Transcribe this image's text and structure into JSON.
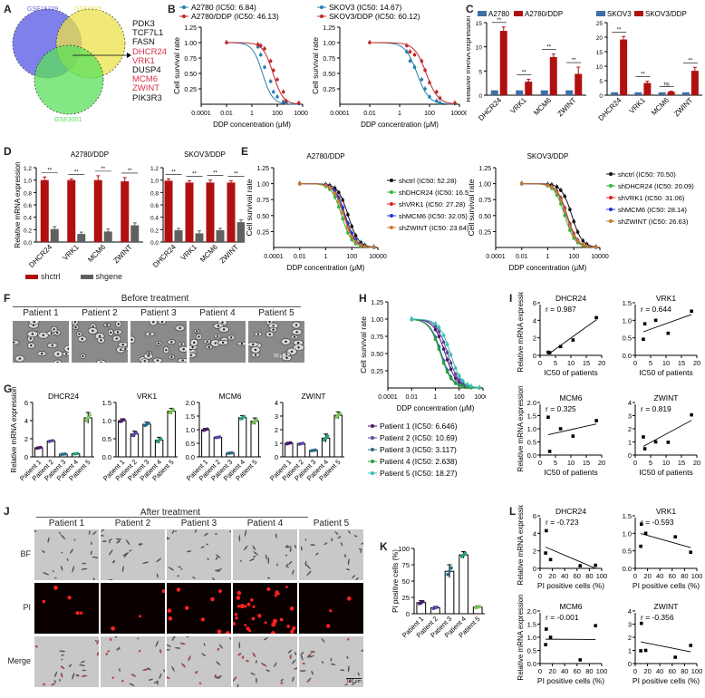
{
  "panels": {
    "A": {
      "label": "A",
      "sets": [
        {
          "name": "GSE15709",
          "color": "#6a6ae8"
        },
        {
          "name": "GSE1926",
          "color": "#e8e04a"
        },
        {
          "name": "GSE3001",
          "color": "#5ad95a"
        }
      ],
      "genes": [
        {
          "name": "PDK3",
          "highlight": false
        },
        {
          "name": "TCF7L1",
          "highlight": false
        },
        {
          "name": "FASN",
          "highlight": false
        },
        {
          "name": "DHCR24",
          "highlight": true
        },
        {
          "name": "VRK1",
          "highlight": true
        },
        {
          "name": "DUSP4",
          "highlight": false
        },
        {
          "name": "MCM6",
          "highlight": true
        },
        {
          "name": "ZWINT",
          "highlight": true
        },
        {
          "name": "PIK3R3",
          "highlight": false
        }
      ],
      "highlight_color": "#d6304a"
    },
    "B": {
      "label": "B"
    },
    "C": {
      "label": "C"
    },
    "D": {
      "label": "D",
      "legend": [
        {
          "name": "shctrl",
          "color": "#b01010"
        },
        {
          "name": "shgene",
          "color": "#606060"
        }
      ]
    },
    "E": {
      "label": "E"
    },
    "F": {
      "label": "F",
      "header": "Before treatment",
      "patients": [
        "Patient 1",
        "Patient 2",
        "Patient 3",
        "Patient 4",
        "Patient 5"
      ],
      "scale_bar": "50 μm"
    },
    "G": {
      "label": "G"
    },
    "H": {
      "label": "H"
    },
    "I": {
      "label": "I"
    },
    "J": {
      "label": "J",
      "header": "After treatment",
      "patients": [
        "Patient 1",
        "Patient 2",
        "Patient 3",
        "Patient 4",
        "Patient 5"
      ],
      "rows": [
        "BF",
        "PI",
        "Merge"
      ],
      "scale_bar": "100 μm"
    },
    "K": {
      "label": "K"
    },
    "L": {
      "label": "L"
    }
  },
  "chart_data": [
    {
      "id": "B-left",
      "type": "line",
      "title": "",
      "xlabel": "DDP concentration (μM)",
      "ylabel": "Cell survival rate",
      "xscale": "log",
      "xticks": [
        "0.0001",
        "0.01",
        "1",
        "100",
        "10000"
      ],
      "yticks": [
        "0.25",
        "0.50",
        "0.75",
        "1.00",
        "1.25"
      ],
      "ylim": [
        0,
        1.25
      ],
      "series": [
        {
          "name": "A2780 (IC50: 6.84)",
          "color": "#2a7fb0",
          "ic50": 6.84,
          "x": [
            0.01,
            3,
            5,
            10,
            30,
            50,
            100,
            300,
            500,
            5000
          ],
          "y": [
            1.0,
            0.93,
            0.8,
            0.6,
            0.37,
            0.2,
            0.12,
            0.04,
            0.02,
            0.01
          ]
        },
        {
          "name": "A2780/DDP (IC50: 46.13)",
          "color": "#c0282a",
          "ic50": 46.13,
          "x": [
            0.01,
            3,
            5,
            10,
            30,
            50,
            100,
            300,
            500,
            5000
          ],
          "y": [
            1.0,
            0.97,
            0.95,
            0.9,
            0.7,
            0.55,
            0.4,
            0.2,
            0.05,
            0.02
          ]
        }
      ]
    },
    {
      "id": "B-right",
      "type": "line",
      "title": "",
      "xlabel": "DDP concentration (μM)",
      "ylabel": "Cell survival rate",
      "xscale": "log",
      "xticks": [
        "0.0001",
        "0.01",
        "1",
        "100",
        "10000"
      ],
      "yticks": [
        "0.25",
        "0.50",
        "0.75",
        "1.00",
        "1.25"
      ],
      "ylim": [
        0,
        1.25
      ],
      "series": [
        {
          "name": "SKOV3 (IC50: 14.67)",
          "color": "#2a7fb0",
          "ic50": 14.67,
          "x": [
            0.01,
            3,
            5,
            10,
            30,
            50,
            100,
            300,
            500,
            5000
          ],
          "y": [
            1.0,
            0.85,
            0.7,
            0.6,
            0.4,
            0.25,
            0.12,
            0.05,
            0.02,
            0.01
          ]
        },
        {
          "name": "SKOV3/DDP (IC50: 60.12)",
          "color": "#c0282a",
          "ic50": 60.12,
          "x": [
            0.01,
            3,
            5,
            10,
            30,
            50,
            100,
            300,
            500,
            5000
          ],
          "y": [
            1.0,
            0.95,
            0.85,
            0.8,
            0.7,
            0.55,
            0.35,
            0.2,
            0.1,
            0.02
          ]
        }
      ]
    },
    {
      "id": "C-left",
      "type": "bar",
      "ylabel": "Relative mRNA expression",
      "categories": [
        "DHCR24",
        "VRK1",
        "MCM6",
        "ZWINT"
      ],
      "ylim": [
        0,
        15
      ],
      "yticks": [
        "0",
        "5",
        "10",
        "15"
      ],
      "series": [
        {
          "name": "A2780",
          "color": "#3d6fa6",
          "values": [
            1,
            1,
            1,
            1
          ]
        },
        {
          "name": "A2780/DDP",
          "color": "#b01010",
          "values": [
            13.3,
            2.8,
            7.9,
            4.4
          ],
          "errors": [
            0.8,
            0.5,
            0.6,
            1.4
          ]
        }
      ],
      "significance": [
        "**",
        "**",
        "**",
        "**"
      ]
    },
    {
      "id": "C-right",
      "type": "bar",
      "ylabel": "",
      "categories": [
        "DHCR24",
        "VRK1",
        "MCM6",
        "ZWINT"
      ],
      "ylim": [
        0,
        25
      ],
      "yticks": [
        "0",
        "5",
        "10",
        "15",
        "20",
        "25"
      ],
      "series": [
        {
          "name": "SKOV3",
          "color": "#3d6fa6",
          "values": [
            1,
            1,
            1,
            1
          ]
        },
        {
          "name": "SKOV3/DDP",
          "color": "#b01010",
          "values": [
            19.2,
            4.2,
            1.2,
            8.4
          ],
          "errors": [
            1.0,
            0.6,
            0.2,
            1.2
          ]
        }
      ],
      "significance": [
        "**",
        "**",
        "ns",
        "**"
      ]
    },
    {
      "id": "D-left",
      "type": "bar",
      "title": "A2780/DDP",
      "ylabel": "Relative mRNA expression",
      "categories": [
        "DHCR24",
        "VRK1",
        "MCM6",
        "ZWINT"
      ],
      "ylim": [
        0,
        1.2
      ],
      "yticks": [
        "0.0",
        "0.2",
        "0.4",
        "0.6",
        "0.8",
        "1.0",
        "1.2"
      ],
      "series": [
        {
          "name": "shctrl",
          "color": "#b01010",
          "values": [
            1.0,
            1.0,
            1.0,
            0.98
          ],
          "errors": [
            0.05,
            0.02,
            0.07,
            0.06
          ]
        },
        {
          "name": "shgene",
          "color": "#606060",
          "values": [
            0.21,
            0.13,
            0.17,
            0.27
          ],
          "errors": [
            0.04,
            0.03,
            0.04,
            0.04
          ]
        }
      ],
      "significance": [
        "**",
        "**",
        "**",
        "**"
      ]
    },
    {
      "id": "D-right",
      "type": "bar",
      "title": "SKOV3/DDP",
      "ylabel": "",
      "categories": [
        "DHCR24",
        "VRK1",
        "MCM6",
        "ZWINT"
      ],
      "ylim": [
        0,
        1.2
      ],
      "yticks": [
        "0.0",
        "0.2",
        "0.4",
        "0.6",
        "0.8",
        "1.0",
        "1.2"
      ],
      "series": [
        {
          "name": "shctrl",
          "color": "#b01010",
          "values": [
            0.99,
            0.96,
            0.96,
            0.96
          ],
          "errors": [
            0.03,
            0.03,
            0.04,
            0.03
          ]
        },
        {
          "name": "shgene",
          "color": "#606060",
          "values": [
            0.19,
            0.14,
            0.19,
            0.32
          ],
          "errors": [
            0.03,
            0.04,
            0.03,
            0.04
          ]
        }
      ],
      "significance": [
        "**",
        "**",
        "**",
        "**"
      ]
    },
    {
      "id": "E-left",
      "type": "line",
      "title": "A2780/DDP",
      "xlabel": "DDP concentration (μM)",
      "ylabel": "Cell survival rate",
      "xscale": "log",
      "xticks": [
        "0.0001",
        "0.01",
        "1",
        "100",
        "10000"
      ],
      "yticks": [
        "0.25",
        "0.50",
        "0.75",
        "1.00",
        "1.25"
      ],
      "ylim": [
        0,
        1.25
      ],
      "series": [
        {
          "name": "shctrl (IC50: 52.28)",
          "color": "#111111",
          "ic50": 52.28
        },
        {
          "name": "shDHCR24 (IC50: 16.54)",
          "color": "#2fb83a",
          "ic50": 16.54
        },
        {
          "name": "shVRK1 (IC50: 27.28)",
          "color": "#e02020",
          "ic50": 27.28
        },
        {
          "name": "shMCM6 (IC50: 32.05)",
          "color": "#2030d0",
          "ic50": 32.05
        },
        {
          "name": "shZWINT (IC50: 23.64)",
          "color": "#c8782a",
          "ic50": 23.64
        }
      ]
    },
    {
      "id": "E-right",
      "type": "line",
      "title": "SKOV3/DDP",
      "xlabel": "DDP concentration (μM)",
      "ylabel": "Cell survival rate",
      "xscale": "log",
      "xticks": [
        "0.0001",
        "0.01",
        "1",
        "100",
        "10000"
      ],
      "yticks": [
        "0.25",
        "0.50",
        "0.75",
        "1.00",
        "1.25"
      ],
      "ylim": [
        0,
        1.25
      ],
      "series": [
        {
          "name": "shctrl (IC50: 70.50)",
          "color": "#111111",
          "ic50": 70.5
        },
        {
          "name": "shDHCR24 (IC50: 20.09)",
          "color": "#2fb83a",
          "ic50": 20.09
        },
        {
          "name": "shVRK1 (IC50: 31.06)",
          "color": "#e02020",
          "ic50": 31.06
        },
        {
          "name": "shMCM6 (IC50: 28.14)",
          "color": "#2030d0",
          "ic50": 28.14
        },
        {
          "name": "shZWINT (IC50: 26.63)",
          "color": "#c8782a",
          "ic50": 26.63
        }
      ]
    },
    {
      "id": "G",
      "type": "bar",
      "ylabel": "Relative mRNA expression",
      "categories": [
        "Patient 1",
        "Patient 2",
        "Patient 3",
        "Patient 4",
        "Patient 5"
      ],
      "point_colors": [
        "#4a1a6a",
        "#5a4aa0",
        "#2a6a8a",
        "#2aa080",
        "#7ac850"
      ],
      "subplots": [
        {
          "title": "DHCR24",
          "ylim": [
            0,
            6
          ],
          "yticks": [
            "0",
            "2",
            "4",
            "6"
          ],
          "values": [
            1.0,
            1.75,
            0.3,
            0.35,
            4.3
          ],
          "errors": [
            0.1,
            0.1,
            0.05,
            0.05,
            0.6
          ]
        },
        {
          "title": "VRK1",
          "ylim": [
            0,
            1.5
          ],
          "yticks": [
            "0.0",
            "0.5",
            "1.0",
            "1.5"
          ],
          "values": [
            1.0,
            0.63,
            0.9,
            0.46,
            1.26
          ],
          "errors": [
            0.05,
            0.08,
            0.06,
            0.08,
            0.08
          ]
        },
        {
          "title": "MCM6",
          "ylim": [
            0,
            2.0
          ],
          "yticks": [
            "0.0",
            "0.5",
            "1.0",
            "1.5",
            "2.0"
          ],
          "values": [
            1.0,
            0.72,
            0.14,
            1.44,
            1.31
          ],
          "errors": [
            0.05,
            0.02,
            0.02,
            0.08,
            0.12
          ]
        },
        {
          "title": "ZWINT",
          "ylim": [
            0,
            4
          ],
          "yticks": [
            "0",
            "1",
            "2",
            "3",
            "4"
          ],
          "values": [
            1.0,
            0.97,
            0.48,
            1.38,
            3.06
          ],
          "errors": [
            0.08,
            0.06,
            0.05,
            0.3,
            0.25
          ]
        }
      ]
    },
    {
      "id": "H",
      "type": "line",
      "xlabel": "DDP concentration (μM)",
      "ylabel": "Cell survival rate",
      "xscale": "log",
      "xticks": [
        "0.0001",
        "0.01",
        "1",
        "100",
        "10000"
      ],
      "yticks": [
        "0.25",
        "0.50",
        "0.75",
        "1.00",
        "1.25"
      ],
      "ylim": [
        0,
        1.25
      ],
      "series": [
        {
          "name": "Patient 1 (IC50: 6.646)",
          "color": "#4a1a6a",
          "ic50": 6.646
        },
        {
          "name": "Patient 2 (IC50: 10.69)",
          "color": "#5a4aa0",
          "ic50": 10.69
        },
        {
          "name": "Patient 3 (IC50: 3.117)",
          "color": "#2a6a8a",
          "ic50": 3.117
        },
        {
          "name": "Patient 4 (IC50: 2.638)",
          "color": "#2aa040",
          "ic50": 2.638
        },
        {
          "name": "Patient 5 (IC50: 18.27)",
          "color": "#3ac0b0",
          "ic50": 18.27
        }
      ]
    },
    {
      "id": "I",
      "type": "scatter",
      "xlabel": "IC50 of patients",
      "ylabel": "Relative mRNA expression",
      "x": [
        6.646,
        10.69,
        3.117,
        2.638,
        18.27
      ],
      "xlim": [
        0,
        20
      ],
      "xticks": [
        "0",
        "5",
        "10",
        "15",
        "20"
      ],
      "subplots": [
        {
          "title": "DHCR24",
          "r": "r = 0.987",
          "ylim": [
            0,
            6
          ],
          "yticks": [
            "0",
            "2",
            "4",
            "6"
          ],
          "y": [
            1.0,
            1.75,
            0.3,
            0.35,
            4.3
          ]
        },
        {
          "title": "VRK1",
          "r": "r = 0.644",
          "ylim": [
            0,
            1.5
          ],
          "yticks": [
            "0.0",
            "0.5",
            "1.0",
            "1.5"
          ],
          "y": [
            1.0,
            0.63,
            0.9,
            0.46,
            1.26
          ]
        },
        {
          "title": "MCM6",
          "r": "r = 0.325",
          "ylim": [
            0,
            2.0
          ],
          "yticks": [
            "0.0",
            "0.5",
            "1.0",
            "1.5",
            "2.0"
          ],
          "y": [
            1.0,
            0.72,
            0.14,
            1.44,
            1.31
          ]
        },
        {
          "title": "ZWINT",
          "r": "r = 0.819",
          "ylim": [
            0,
            4
          ],
          "yticks": [
            "0",
            "1",
            "2",
            "3",
            "4"
          ],
          "y": [
            1.0,
            0.97,
            0.48,
            1.38,
            3.06
          ]
        }
      ]
    },
    {
      "id": "K",
      "type": "bar",
      "ylabel": "PI positive cells (%)",
      "categories": [
        "Patient 1",
        "Patient 2",
        "Patient 3",
        "Patient 4",
        "Patient 5"
      ],
      "values": [
        17,
        9,
        65,
        90,
        10
      ],
      "errors": [
        3,
        2,
        10,
        5,
        2
      ],
      "ylim": [
        0,
        100
      ],
      "yticks": [
        "0",
        "25",
        "50",
        "75",
        "100"
      ],
      "point_colors": [
        "#4a1a6a",
        "#5a4aa0",
        "#2a6a8a",
        "#2aa080",
        "#7ac850"
      ]
    },
    {
      "id": "L",
      "type": "scatter",
      "xlabel": "PI positive cells (%)",
      "ylabel": "Relative mRNA expression",
      "x": [
        17,
        9,
        65,
        90,
        10
      ],
      "xlim": [
        0,
        100
      ],
      "xticks": [
        "0",
        "20",
        "40",
        "60",
        "80",
        "100"
      ],
      "subplots": [
        {
          "title": "DHCR24",
          "r": "r = -0.723",
          "ylim": [
            0,
            6
          ],
          "yticks": [
            "0",
            "2",
            "4",
            "6"
          ],
          "y": [
            1.0,
            1.75,
            0.3,
            0.35,
            4.3
          ]
        },
        {
          "title": "VRK1",
          "r": "r = -0.593",
          "ylim": [
            0,
            1.5
          ],
          "yticks": [
            "0.0",
            "0.5",
            "1.0",
            "1.5"
          ],
          "y": [
            1.0,
            0.63,
            0.9,
            0.46,
            1.26
          ]
        },
        {
          "title": "MCM6",
          "r": "r = -0.001",
          "ylim": [
            0,
            2.0
          ],
          "yticks": [
            "0.0",
            "0.5",
            "1.0",
            "1.5",
            "2.0"
          ],
          "y": [
            1.0,
            0.72,
            0.14,
            1.44,
            1.31
          ]
        },
        {
          "title": "ZWINT",
          "r": "r = -0.356",
          "ylim": [
            0,
            4
          ],
          "yticks": [
            "0",
            "1",
            "2",
            "3",
            "4"
          ],
          "y": [
            1.0,
            0.97,
            0.48,
            1.38,
            3.06
          ]
        }
      ]
    }
  ]
}
